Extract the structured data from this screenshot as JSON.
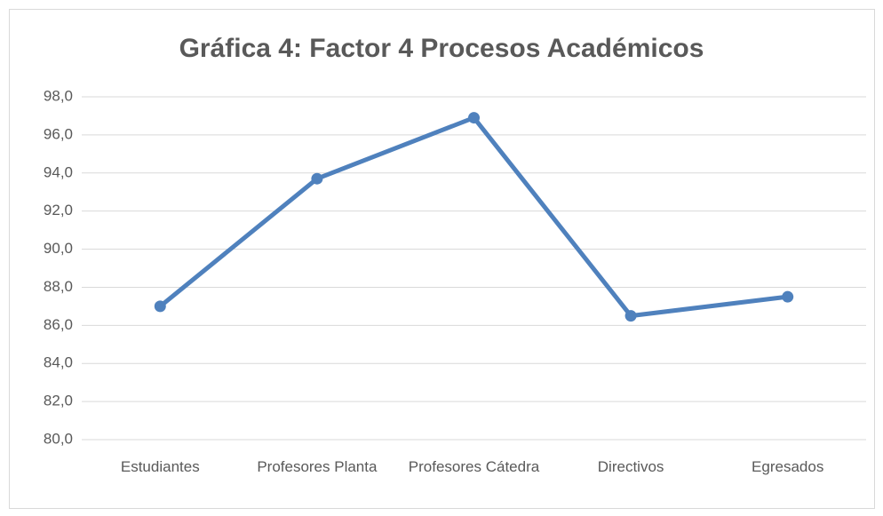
{
  "chart_data": {
    "type": "line",
    "title": "Gráfica 4: Factor 4 Procesos Académicos",
    "categories": [
      "Estudiantes",
      "Profesores Planta",
      "Profesores Cátedra",
      "Directivos",
      "Egresados"
    ],
    "series": [
      {
        "color": "#4f81bd",
        "values": [
          87.0,
          93.7,
          96.9,
          86.5,
          87.5
        ]
      }
    ],
    "ylim": [
      80,
      98
    ],
    "yticks": [
      {
        "value": 80,
        "label": "80,0"
      },
      {
        "value": 82,
        "label": "82,0"
      },
      {
        "value": 84,
        "label": "84,0"
      },
      {
        "value": 86,
        "label": "86,0"
      },
      {
        "value": 88,
        "label": "88,0"
      },
      {
        "value": 90,
        "label": "90,0"
      },
      {
        "value": 92,
        "label": "92,0"
      },
      {
        "value": 94,
        "label": "94,0"
      },
      {
        "value": 96,
        "label": "96,0"
      },
      {
        "value": 98,
        "label": "98,0"
      }
    ],
    "grid": true
  }
}
